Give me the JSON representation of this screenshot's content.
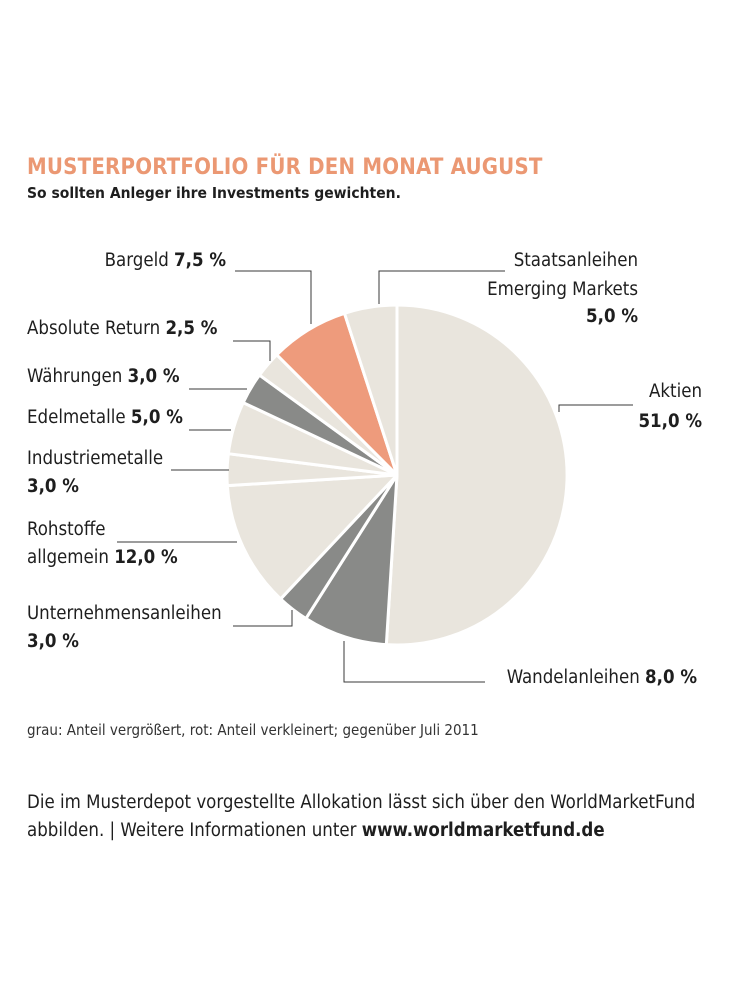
{
  "header": {
    "title": "MUSTERPORTFOLIO FÜR DEN MONAT AUGUST",
    "subtitle": "So sollten Anleger ihre Investments gewichten."
  },
  "colors": {
    "light": "#e9e5dd",
    "grey": "#898a88",
    "red": "#ee9b7c",
    "border": "#ffffff",
    "title": "#eb9873"
  },
  "chart_data": {
    "type": "pie",
    "unit": "%",
    "start": "12 o'clock, clockwise",
    "slices": [
      {
        "key": "aktien",
        "label": [
          "Aktien"
        ],
        "value": "51,0 %",
        "share": 51.0,
        "color_key": "light"
      },
      {
        "key": "wandelanleihen",
        "label": [
          "Wandelanleihen"
        ],
        "value": "8,0 %",
        "share": 8.0,
        "color_key": "grey"
      },
      {
        "key": "unternehmensanleihen",
        "label": [
          "Unternehmensanleihen"
        ],
        "value": "3,0 %",
        "share": 3.0,
        "color_key": "grey"
      },
      {
        "key": "rohstoffe",
        "label": [
          "Rohstoffe",
          "allgemein"
        ],
        "value": "12,0 %",
        "share": 12.0,
        "color_key": "light"
      },
      {
        "key": "industriemetalle",
        "label": [
          "Industriemetalle"
        ],
        "value": "3,0 %",
        "share": 3.0,
        "color_key": "light"
      },
      {
        "key": "edelmetalle",
        "label": [
          "Edelmetalle"
        ],
        "value": "5,0 %",
        "share": 5.0,
        "color_key": "light"
      },
      {
        "key": "waehrungen",
        "label": [
          "Währungen"
        ],
        "value": "3,0 %",
        "share": 3.0,
        "color_key": "grey"
      },
      {
        "key": "absolute-return",
        "label": [
          "Absolute Return"
        ],
        "value": "2,5 %",
        "share": 2.5,
        "color_key": "light"
      },
      {
        "key": "bargeld",
        "label": [
          "Bargeld"
        ],
        "value": "7,5 %",
        "share": 7.5,
        "color_key": "red"
      },
      {
        "key": "staatsanleihen-em",
        "label": [
          "Staatsanleihen",
          "Emerging Markets"
        ],
        "value": "5,0 %",
        "share": 5.0,
        "color_key": "light"
      }
    ]
  },
  "note": "grau: Anteil vergrößert, rot: Anteil verkleinert; gegenüber Juli 2011",
  "footer": {
    "text_line1": "Die im Musterdepot vorgestellte Allokation lässt sich über den WorldMarketFund",
    "text_line2": "abbilden. | Weitere Informationen unter ",
    "url": "www.worldmarketfund.de"
  }
}
